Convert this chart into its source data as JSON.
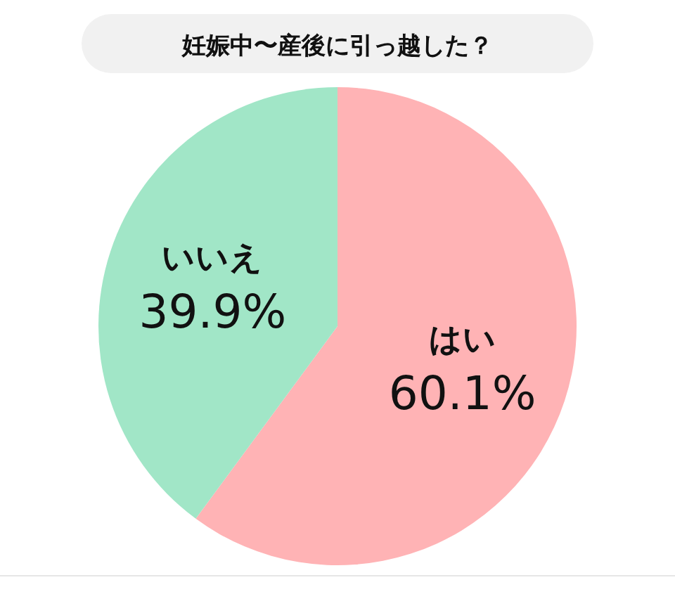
{
  "chart_data": {
    "type": "pie",
    "title": "妊娠中〜産後に引っ越した？",
    "categories": [
      "はい",
      "いいえ"
    ],
    "values": [
      60.1,
      39.9
    ],
    "colors": [
      "#ffb3b5",
      "#a1e6c7"
    ],
    "value_labels": [
      "60.1%",
      "39.9%"
    ]
  }
}
